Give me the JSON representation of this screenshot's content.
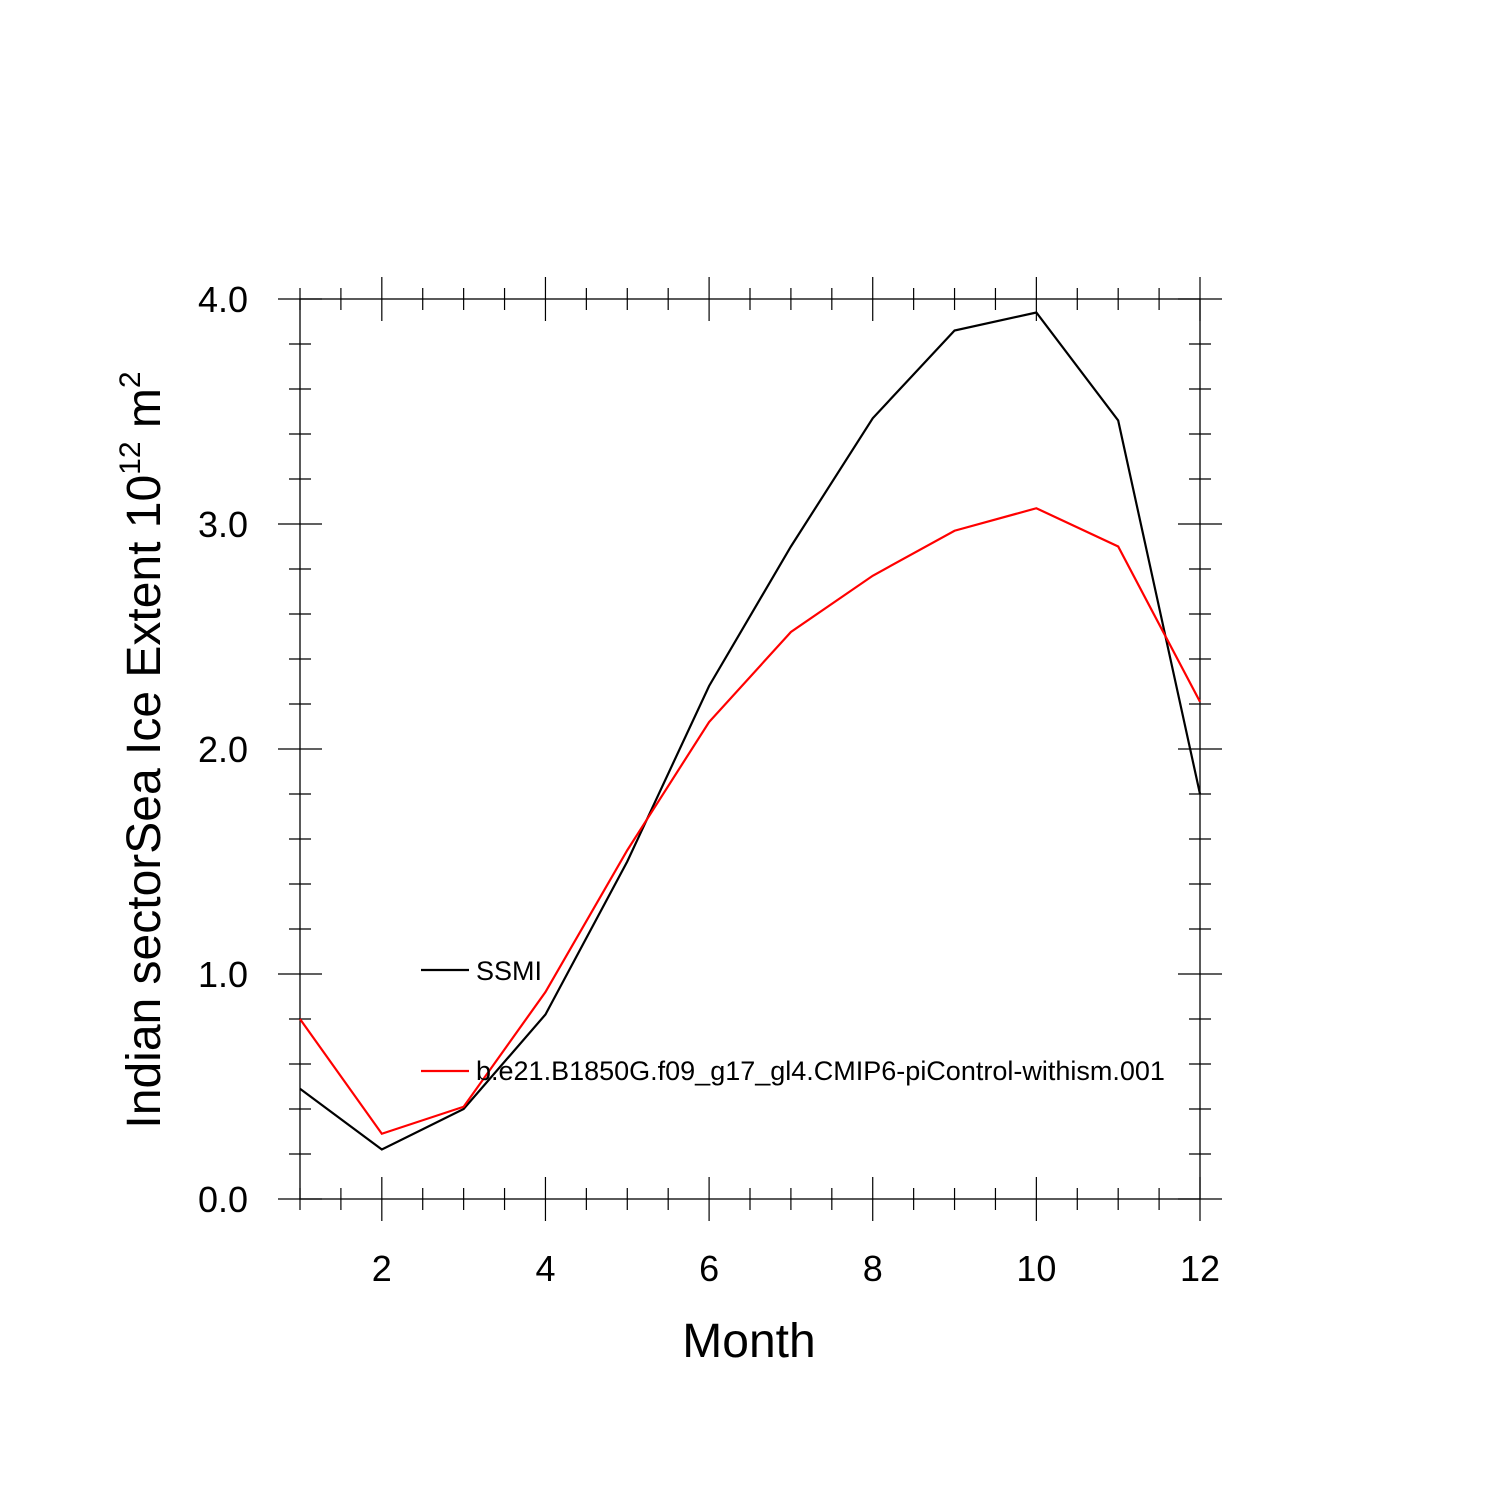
{
  "chart_data": {
    "type": "line",
    "x": [
      1,
      2,
      3,
      4,
      5,
      6,
      7,
      8,
      9,
      10,
      11,
      12
    ],
    "series": [
      {
        "name": "SSMI",
        "color": "#000000",
        "values": [
          0.49,
          0.22,
          0.4,
          0.82,
          1.5,
          2.28,
          2.9,
          3.47,
          3.86,
          3.94,
          3.46,
          1.8
        ]
      },
      {
        "name": "b.e21.B1850G.f09_g17_gl4.CMIP6-piControl-withism.001",
        "color": "#ff0000",
        "values": [
          0.8,
          0.29,
          0.41,
          0.92,
          1.55,
          2.12,
          2.52,
          2.77,
          2.97,
          3.07,
          2.9,
          2.21
        ]
      }
    ],
    "xlabel": "Month",
    "ylabel_main": "Indian sectorSea Ice Extent 10",
    "ylabel_sup1": "12",
    "ylabel_unit": " m",
    "ylabel_sup2": "2",
    "xlim": [
      1,
      12
    ],
    "ylim": [
      0,
      4
    ],
    "xticks": [
      2,
      4,
      6,
      8,
      10,
      12
    ],
    "xtick_labels": [
      "2",
      "4",
      "6",
      "8",
      "10",
      "12"
    ],
    "yticks": [
      0,
      1,
      2,
      3,
      4
    ],
    "ytick_labels": [
      "0.0",
      "1.0",
      "2.0",
      "3.0",
      "4.0"
    ],
    "x_minor_step": 0.5,
    "y_minor_step": 0.2,
    "grid": false,
    "legend_position": "left-center"
  }
}
